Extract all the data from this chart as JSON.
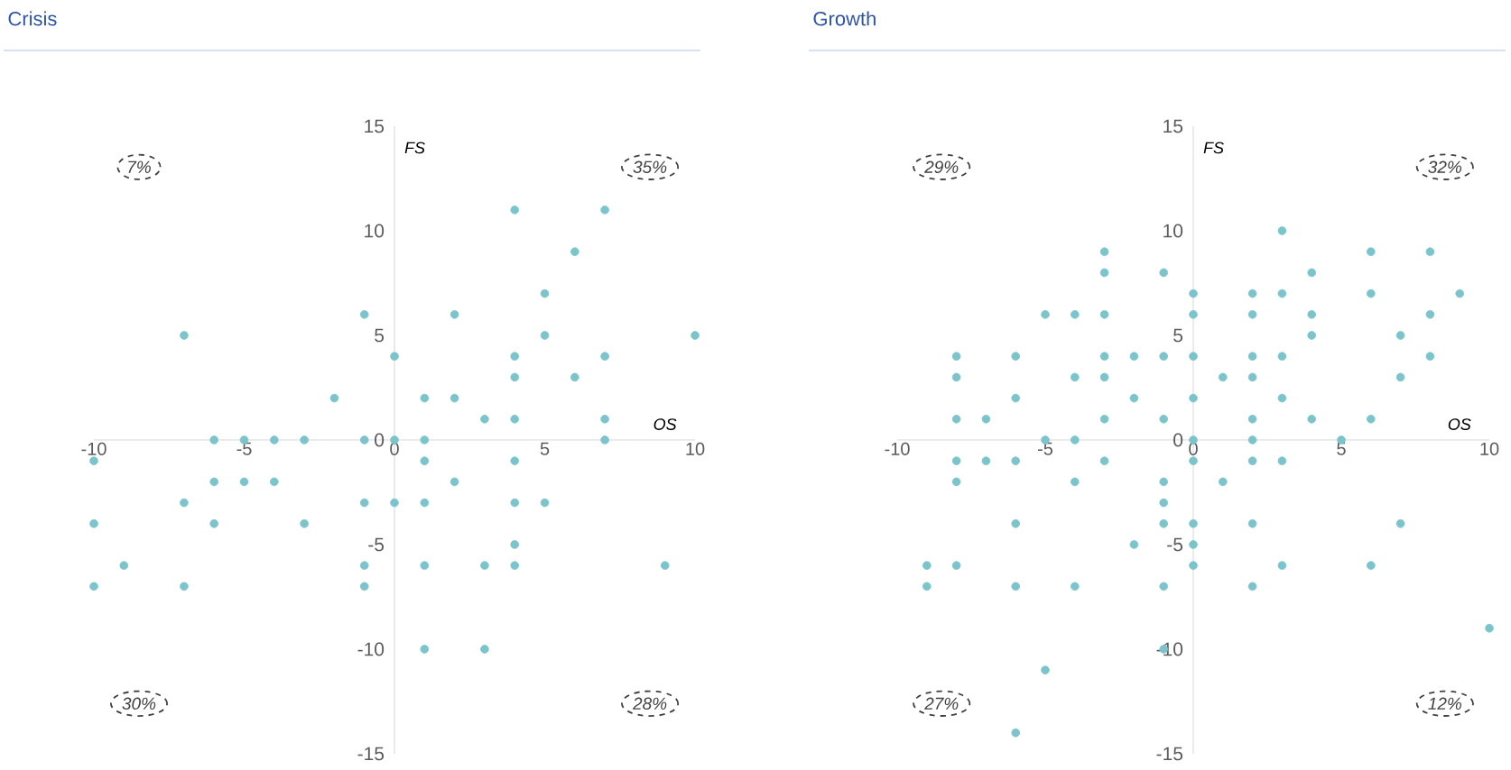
{
  "chart_data": [
    {
      "type": "scatter",
      "title": "Crisis",
      "xlabel": "OS",
      "ylabel": "FS",
      "color": "#7cc4cc",
      "marker": "circle",
      "x": [
        -7,
        -6,
        -5,
        -4,
        -3,
        -2,
        -1,
        0,
        0,
        1,
        1,
        2,
        2,
        3,
        4,
        4,
        4,
        4,
        5,
        5,
        6,
        6,
        7,
        7,
        7,
        7,
        10,
        -1,
        -10,
        -6,
        -5,
        -4,
        -7,
        -10,
        -6,
        -3,
        -9,
        -10,
        -7,
        -1,
        0,
        1,
        1,
        2,
        4,
        4,
        5,
        4,
        4,
        3,
        1,
        -1,
        -1,
        1,
        3,
        9
      ],
      "values": [
        5,
        0,
        0,
        0,
        0,
        2,
        6,
        4,
        0,
        0,
        2,
        2,
        6,
        1,
        1,
        11,
        4,
        3,
        7,
        5,
        9,
        3,
        11,
        4,
        1,
        0,
        5,
        0,
        -1,
        -2,
        -2,
        -2,
        -3,
        -4,
        -4,
        -4,
        -6,
        -7,
        -7,
        -3,
        -3,
        -3,
        -1,
        -2,
        -1,
        -3,
        -3,
        -5,
        -6,
        -6,
        -6,
        -6,
        -7,
        -10,
        -10,
        -6
      ],
      "xlim": [
        -10,
        10
      ],
      "ylim": [
        -15,
        15
      ],
      "xticks": [
        -10,
        -5,
        0,
        5,
        10
      ],
      "yticks": [
        -15,
        -10,
        -5,
        0,
        5,
        10,
        15
      ],
      "annotations": [
        "7%",
        "35%",
        "30%",
        "28%"
      ]
    },
    {
      "type": "scatter",
      "title": "Growth",
      "xlabel": "OS",
      "ylabel": "FS",
      "color": "#7cc4cc",
      "marker": "circle",
      "x": [
        -8,
        -8,
        -8,
        -7,
        -6,
        -6,
        -5,
        -5,
        -4,
        -4,
        -4,
        -3,
        -3,
        -3,
        -3,
        -3,
        -3,
        -2,
        -2,
        -1,
        -1,
        -1,
        0,
        0,
        0,
        0,
        0,
        1,
        2,
        2,
        2,
        2,
        2,
        2,
        3,
        3,
        3,
        3,
        4,
        4,
        4,
        4,
        5,
        6,
        6,
        6,
        7,
        7,
        8,
        8,
        8,
        9,
        -8,
        -8,
        -7,
        -6,
        -4,
        -3,
        -1,
        -1,
        -1,
        -2,
        -1,
        0,
        0,
        0,
        0,
        1,
        2,
        3,
        2,
        2,
        3,
        6,
        7,
        -6,
        -9,
        -8,
        -9,
        -6,
        -4,
        -1,
        -5,
        -6,
        10
      ],
      "values": [
        4,
        3,
        1,
        1,
        4,
        2,
        6,
        0,
        6,
        3,
        0,
        9,
        8,
        6,
        4,
        3,
        1,
        4,
        2,
        8,
        4,
        1,
        7,
        6,
        4,
        2,
        0,
        3,
        7,
        6,
        4,
        3,
        1,
        0,
        10,
        7,
        4,
        2,
        8,
        6,
        5,
        1,
        0,
        9,
        7,
        1,
        5,
        3,
        9,
        6,
        4,
        7,
        -1,
        -2,
        -1,
        -1,
        -2,
        -1,
        -2,
        -3,
        -4,
        -5,
        -7,
        -1,
        -4,
        -5,
        -6,
        -2,
        -1,
        -1,
        -4,
        -7,
        -6,
        -6,
        -4,
        -4,
        -6,
        -6,
        -7,
        -7,
        -7,
        -10,
        -11,
        -14,
        -9
      ],
      "xlim": [
        -10,
        10
      ],
      "ylim": [
        -15,
        15
      ],
      "xticks": [
        -10,
        -5,
        0,
        5,
        10
      ],
      "yticks": [
        -15,
        -10,
        -5,
        0,
        5,
        10,
        15
      ],
      "annotations": [
        "29%",
        "32%",
        "27%",
        "12%"
      ]
    }
  ]
}
